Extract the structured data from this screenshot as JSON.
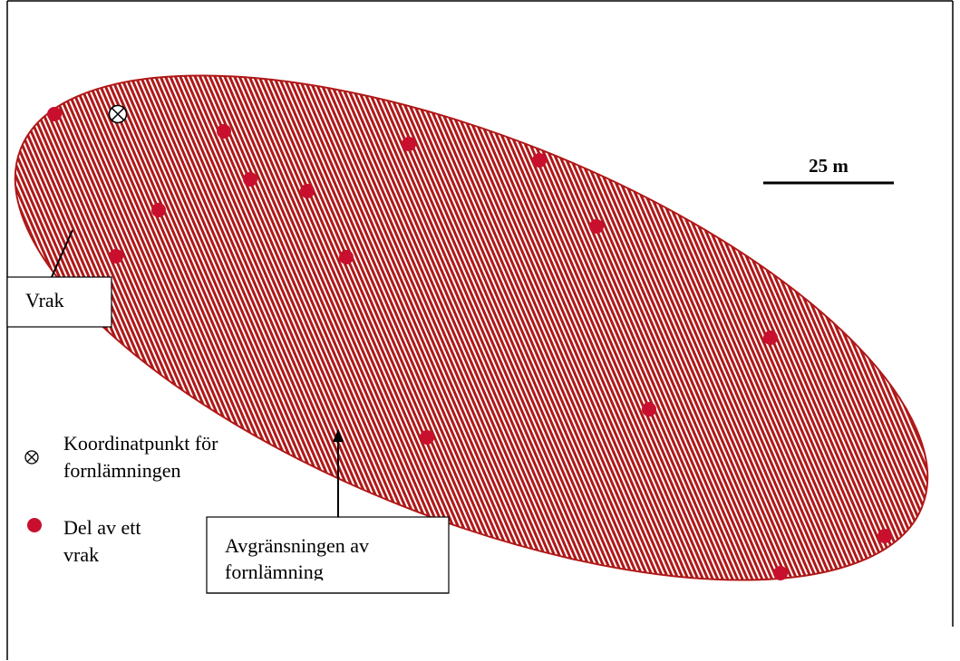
{
  "colors": {
    "area_red": "#b01818",
    "find_red": "#c8102e",
    "frame": "#000000",
    "background": "#ffffff"
  },
  "scale_bar": {
    "label": "25 m"
  },
  "callouts": {
    "wreck": "Vrak",
    "boundary_line1": "Avgränsningen av",
    "boundary_line2": "fornlämning"
  },
  "legend": {
    "coordinate_point_line1": "Koordinatpunkt för",
    "coordinate_point_line2": "fornlämningen",
    "coordinate_point_icon": "circled-x-icon",
    "wreck_part_line1": "Del av ett",
    "wreck_part_line2": "vrak",
    "wreck_part_icon": "red-dot-icon"
  },
  "wreck_part_count": 16
}
